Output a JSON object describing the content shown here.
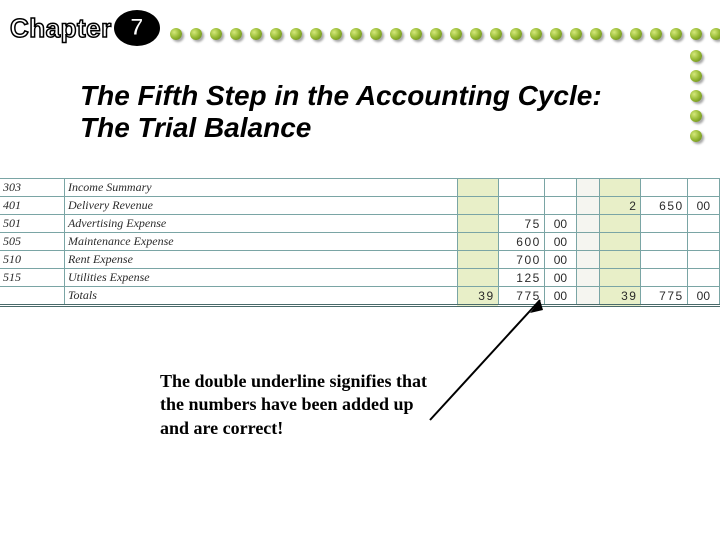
{
  "chapter": {
    "label": "Chapter",
    "number": "7"
  },
  "title": "The Fifth Step in the Accounting Cycle: The Trial Balance",
  "dots": {
    "row_count": 29,
    "col_count": 5,
    "fill": "#95b832"
  },
  "ledger": {
    "colors": {
      "rule": "#7aa5a5",
      "shade": "#e8efc8"
    },
    "rows": [
      {
        "acct": "303",
        "name": "Income Summary",
        "d_th": "",
        "d_hu": "",
        "d_c": "",
        "c_th": "",
        "c_hu": "",
        "c_c": ""
      },
      {
        "acct": "401",
        "name": "Delivery Revenue",
        "d_th": "",
        "d_hu": "",
        "d_c": "",
        "c_th": "2",
        "c_hu": "650",
        "c_c": "00"
      },
      {
        "acct": "501",
        "name": "Advertising Expense",
        "d_th": "",
        "d_hu": "75",
        "d_c": "00",
        "c_th": "",
        "c_hu": "",
        "c_c": ""
      },
      {
        "acct": "505",
        "name": "Maintenance Expense",
        "d_th": "",
        "d_hu": "600",
        "d_c": "00",
        "c_th": "",
        "c_hu": "",
        "c_c": ""
      },
      {
        "acct": "510",
        "name": "Rent Expense",
        "d_th": "",
        "d_hu": "700",
        "d_c": "00",
        "c_th": "",
        "c_hu": "",
        "c_c": ""
      },
      {
        "acct": "515",
        "name": "Utilities Expense",
        "d_th": "",
        "d_hu": "125",
        "d_c": "00",
        "c_th": "",
        "c_hu": "",
        "c_c": ""
      }
    ],
    "totals": {
      "name": "Totals",
      "d_th": "39",
      "d_hu": "775",
      "d_c": "00",
      "c_th": "39",
      "c_hu": "775",
      "c_c": "00"
    }
  },
  "caption": "The double underline signifies that the numbers have been added up and are correct!"
}
